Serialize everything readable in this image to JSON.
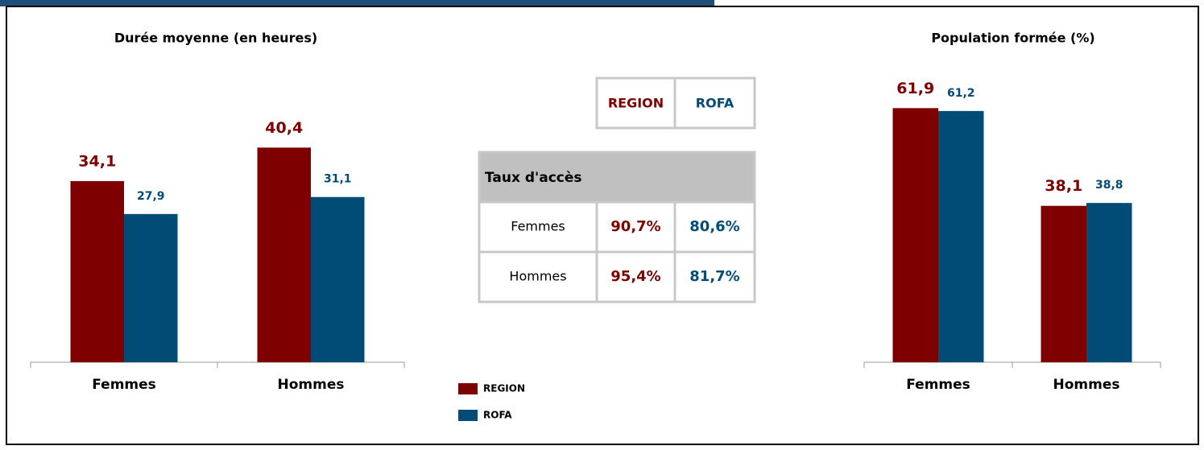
{
  "chart_data": [
    {
      "type": "bar",
      "title": "Durée moyenne (en heures)",
      "categories": [
        "Femmes",
        "Hommes"
      ],
      "series": [
        {
          "name": "REGION",
          "color": "#7f0000",
          "values": [
            34.1,
            40.4
          ],
          "value_labels": [
            "34,1",
            "40,4"
          ]
        },
        {
          "name": "ROFA",
          "color": "#004c76",
          "values": [
            27.9,
            31.1
          ],
          "value_labels": [
            "27,9",
            "31,1"
          ]
        }
      ],
      "ylim": [
        0,
        55
      ]
    },
    {
      "type": "bar",
      "title": "Population formée (%)",
      "categories": [
        "Femmes",
        "Hommes"
      ],
      "series": [
        {
          "name": "REGION",
          "color": "#7f0000",
          "values": [
            61.9,
            38.1
          ],
          "value_labels": [
            "61,9",
            "38,1"
          ]
        },
        {
          "name": "ROFA",
          "color": "#004c76",
          "values": [
            61.2,
            38.8
          ],
          "value_labels": [
            "61,2",
            "38,8"
          ]
        }
      ],
      "ylim": [
        0,
        70
      ]
    }
  ],
  "table": {
    "title": "Taux d'accès",
    "rows": [
      [
        "Femmes",
        "90,7%",
        "80,6%"
      ],
      [
        "Hommes",
        "95,4%",
        "81,7%"
      ]
    ]
  }
}
